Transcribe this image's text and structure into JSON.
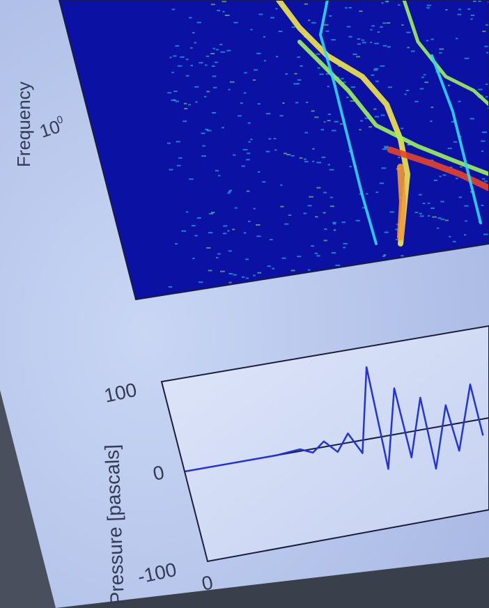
{
  "chart_data": [
    {
      "type": "heatmap",
      "ylabel": "Frequency",
      "yscale": "log",
      "tick_labels_y": [
        {
          "base": "10",
          "exp": "0"
        }
      ],
      "colormap": [
        "#0a14a8",
        "#1d5cff",
        "#2fd9f0",
        "#9ff25a",
        "#f2e84a",
        "#f29a3a",
        "#e8442a"
      ],
      "grid": false
    },
    {
      "type": "line",
      "ylabel": "Pressure [pascals]",
      "ylim": [
        -100,
        100
      ],
      "yticks": [
        "100",
        "0",
        "-100"
      ],
      "xticks": [
        "0"
      ],
      "line_color": "#2233dd",
      "baseline_color": "#1a1d3a",
      "series": [
        {
          "x": [
            0.0,
            0.1,
            0.2,
            0.3,
            0.38,
            0.42,
            0.46,
            0.5,
            0.54,
            0.58,
            0.62,
            0.66,
            0.7,
            0.74,
            0.78,
            0.82,
            0.86,
            0.9,
            0.94,
            0.98
          ],
          "values": [
            0,
            0,
            0,
            0,
            2,
            -4,
            6,
            -8,
            10,
            -14,
            78,
            -36,
            50,
            -28,
            35,
            -45,
            22,
            -30,
            40,
            -18
          ]
        }
      ]
    }
  ]
}
